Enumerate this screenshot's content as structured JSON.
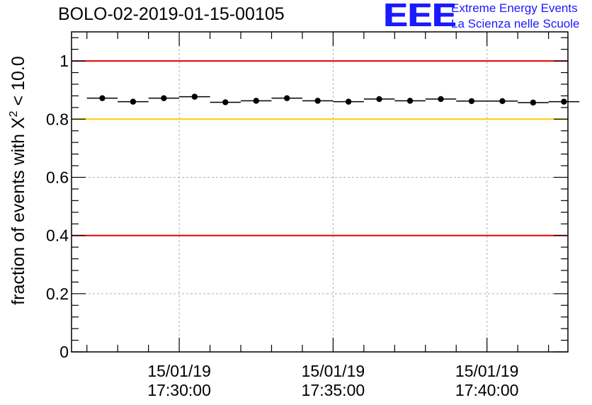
{
  "header": {
    "run_title": "BOLO-02-2019-01-15-00105",
    "logo_text": "EEE",
    "logo_line1": "Extreme Energy Events",
    "logo_line2": "La Scienza nelle Scuole"
  },
  "colors": {
    "red_line": "#e00000",
    "yellow_line": "#ffcc00",
    "logo": "#1a1aff",
    "marker": "#000000",
    "grid": "#b0b0b0"
  },
  "chart_data": {
    "type": "scatter",
    "title": "BOLO-02-2019-01-15-00105",
    "ylabel_prefix": "fraction of events with ",
    "ylabel_symbol": "X",
    "ylabel_superscript": "2",
    "ylabel_suffix": " < 10.0",
    "xlabel": "",
    "ylim": [
      0,
      1.1
    ],
    "xlim_minutes": [
      -3.5,
      12.63
    ],
    "yticks": [
      {
        "value": 0,
        "label": "0"
      },
      {
        "value": 0.2,
        "label": "0.2"
      },
      {
        "value": 0.4,
        "label": "0.4"
      },
      {
        "value": 0.6,
        "label": "0.6"
      },
      {
        "value": 0.8,
        "label": "0.8"
      },
      {
        "value": 1,
        "label": "1"
      }
    ],
    "xticks": [
      {
        "minute": 0,
        "date": "15/01/19",
        "time": "17:30:00"
      },
      {
        "minute": 5,
        "date": "15/01/19",
        "time": "17:35:00"
      },
      {
        "minute": 10,
        "date": "15/01/19",
        "time": "17:40:00"
      }
    ],
    "x_minor_step_minutes": 1,
    "bin_width_minutes": 1,
    "reference_lines": [
      {
        "value": 1.0,
        "color": "red"
      },
      {
        "value": 0.8,
        "color": "yellow"
      },
      {
        "value": 0.4,
        "color": "red"
      }
    ],
    "points": [
      {
        "x": -2.5,
        "y": 0.872
      },
      {
        "x": -1.5,
        "y": 0.86
      },
      {
        "x": -0.5,
        "y": 0.872
      },
      {
        "x": 0.5,
        "y": 0.877
      },
      {
        "x": 1.5,
        "y": 0.858
      },
      {
        "x": 2.5,
        "y": 0.863
      },
      {
        "x": 3.5,
        "y": 0.872
      },
      {
        "x": 4.5,
        "y": 0.863
      },
      {
        "x": 5.5,
        "y": 0.86
      },
      {
        "x": 6.5,
        "y": 0.869
      },
      {
        "x": 7.5,
        "y": 0.863
      },
      {
        "x": 8.5,
        "y": 0.869
      },
      {
        "x": 9.5,
        "y": 0.862
      },
      {
        "x": 10.5,
        "y": 0.862
      },
      {
        "x": 11.5,
        "y": 0.857
      },
      {
        "x": 12.5,
        "y": 0.86
      }
    ]
  }
}
